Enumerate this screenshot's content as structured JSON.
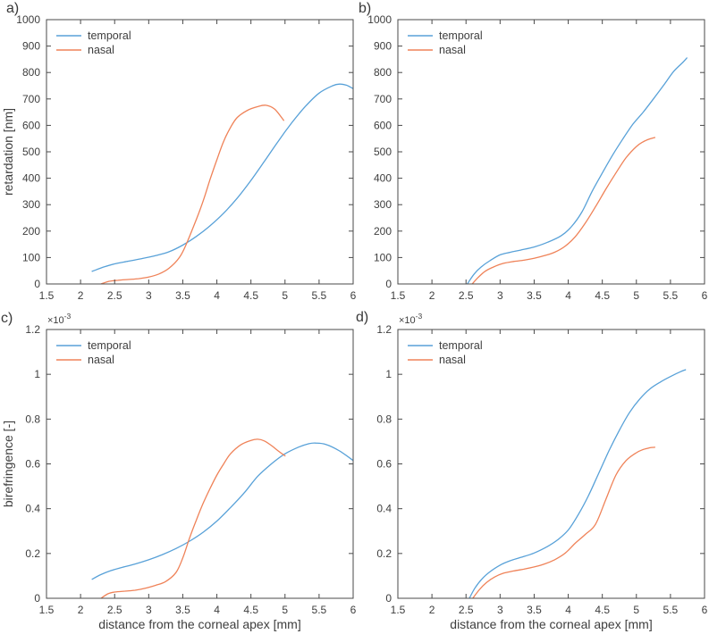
{
  "figure": {
    "background": "#ffffff",
    "axis_color": "#4a4a4a",
    "text_color": "#3e3e3e",
    "grid": false,
    "box": true,
    "series_palette": {
      "temporal": "#58a1d8",
      "nasal": "#ef8258"
    },
    "shared_xlabel": "distance from the corneal apex [mm]"
  },
  "chart_data": [
    {
      "id": "a",
      "panel_label": "a)",
      "type": "line",
      "xlabel": "",
      "ylabel": "retardation [nm]",
      "xlim": [
        1.5,
        6
      ],
      "ylim": [
        0,
        1000
      ],
      "xticks": [
        1.5,
        2,
        2.5,
        3,
        3.5,
        4,
        4.5,
        5,
        5.5,
        6
      ],
      "xtick_labels": [
        "1.5",
        "2",
        "2.5",
        "3",
        "3.5",
        "4",
        "4.5",
        "5",
        "5.5",
        "6"
      ],
      "yticks": [
        0,
        100,
        200,
        300,
        400,
        500,
        600,
        700,
        800,
        900,
        1000
      ],
      "ytick_labels": [
        "0",
        "100",
        "200",
        "300",
        "400",
        "500",
        "600",
        "700",
        "800",
        "900",
        "1000"
      ],
      "y_exponent": null,
      "grid": false,
      "legend_position": "top-left",
      "legend": [
        "temporal",
        "nasal"
      ],
      "series": [
        {
          "name": "temporal",
          "color": "#58a1d8",
          "points": [
            [
              2.17,
              48
            ],
            [
              2.35,
              65
            ],
            [
              2.5,
              76
            ],
            [
              2.7,
              86
            ],
            [
              2.9,
              96
            ],
            [
              3.1,
              107
            ],
            [
              3.3,
              122
            ],
            [
              3.5,
              147
            ],
            [
              3.7,
              180
            ],
            [
              3.9,
              220
            ],
            [
              4.1,
              268
            ],
            [
              4.3,
              325
            ],
            [
              4.5,
              392
            ],
            [
              4.7,
              465
            ],
            [
              4.9,
              540
            ],
            [
              5.1,
              610
            ],
            [
              5.3,
              672
            ],
            [
              5.5,
              722
            ],
            [
              5.7,
              750
            ],
            [
              5.8,
              756
            ],
            [
              5.9,
              752
            ],
            [
              6.0,
              739
            ]
          ]
        },
        {
          "name": "nasal",
          "color": "#ef8258",
          "points": [
            [
              2.3,
              0
            ],
            [
              2.42,
              10
            ],
            [
              2.55,
              14
            ],
            [
              2.7,
              17
            ],
            [
              2.85,
              20
            ],
            [
              3.0,
              26
            ],
            [
              3.15,
              38
            ],
            [
              3.3,
              60
            ],
            [
              3.45,
              100
            ],
            [
              3.55,
              150
            ],
            [
              3.7,
              245
            ],
            [
              3.8,
              315
            ],
            [
              3.9,
              395
            ],
            [
              4.0,
              470
            ],
            [
              4.1,
              540
            ],
            [
              4.2,
              592
            ],
            [
              4.3,
              630
            ],
            [
              4.45,
              657
            ],
            [
              4.6,
              671
            ],
            [
              4.72,
              676
            ],
            [
              4.85,
              661
            ],
            [
              4.98,
              619
            ]
          ]
        }
      ]
    },
    {
      "id": "b",
      "panel_label": "b)",
      "type": "line",
      "xlabel": "",
      "ylabel": "",
      "xlim": [
        1.5,
        6
      ],
      "ylim": [
        0,
        1000
      ],
      "xticks": [
        1.5,
        2,
        2.5,
        3,
        3.5,
        4,
        4.5,
        5,
        5.5,
        6
      ],
      "xtick_labels": [
        "1.5",
        "2",
        "2.5",
        "3",
        "3.5",
        "4",
        "4.5",
        "5",
        "5.5",
        "6"
      ],
      "yticks": [
        0,
        100,
        200,
        300,
        400,
        500,
        600,
        700,
        800,
        900,
        1000
      ],
      "ytick_labels": [
        "0",
        "100",
        "200",
        "300",
        "400",
        "500",
        "600",
        "700",
        "800",
        "900",
        "1000"
      ],
      "y_exponent": null,
      "grid": false,
      "legend_position": "top-left",
      "legend": [
        "temporal",
        "nasal"
      ],
      "series": [
        {
          "name": "temporal",
          "color": "#58a1d8",
          "points": [
            [
              2.52,
              0
            ],
            [
              2.62,
              38
            ],
            [
              2.72,
              64
            ],
            [
              2.85,
              88
            ],
            [
              3.0,
              110
            ],
            [
              3.15,
              120
            ],
            [
              3.3,
              128
            ],
            [
              3.5,
              140
            ],
            [
              3.7,
              158
            ],
            [
              3.9,
              183
            ],
            [
              4.05,
              218
            ],
            [
              4.2,
              272
            ],
            [
              4.35,
              350
            ],
            [
              4.5,
              420
            ],
            [
              4.65,
              487
            ],
            [
              4.8,
              548
            ],
            [
              4.95,
              605
            ],
            [
              5.1,
              650
            ],
            [
              5.25,
              700
            ],
            [
              5.4,
              752
            ],
            [
              5.55,
              805
            ],
            [
              5.68,
              838
            ],
            [
              5.74,
              855
            ]
          ]
        },
        {
          "name": "nasal",
          "color": "#ef8258",
          "points": [
            [
              2.59,
              0
            ],
            [
              2.68,
              25
            ],
            [
              2.78,
              48
            ],
            [
              2.9,
              64
            ],
            [
              3.05,
              78
            ],
            [
              3.2,
              85
            ],
            [
              3.35,
              90
            ],
            [
              3.5,
              97
            ],
            [
              3.65,
              107
            ],
            [
              3.8,
              120
            ],
            [
              3.95,
              142
            ],
            [
              4.1,
              178
            ],
            [
              4.25,
              230
            ],
            [
              4.4,
              292
            ],
            [
              4.55,
              358
            ],
            [
              4.7,
              420
            ],
            [
              4.85,
              478
            ],
            [
              5.0,
              520
            ],
            [
              5.1,
              538
            ],
            [
              5.2,
              549
            ],
            [
              5.27,
              554
            ]
          ]
        }
      ]
    },
    {
      "id": "c",
      "panel_label": "c)",
      "type": "line",
      "xlabel": "distance from the corneal apex [mm]",
      "ylabel": "birefringence [-]",
      "xlim": [
        1.5,
        6
      ],
      "ylim": [
        0,
        1.2
      ],
      "y_multiplier": 0.001,
      "xticks": [
        1.5,
        2,
        2.5,
        3,
        3.5,
        4,
        4.5,
        5,
        5.5,
        6
      ],
      "xtick_labels": [
        "1.5",
        "2",
        "2.5",
        "3",
        "3.5",
        "4",
        "4.5",
        "5",
        "5.5",
        "6"
      ],
      "yticks": [
        0,
        0.2,
        0.4,
        0.6,
        0.8,
        1,
        1.2
      ],
      "ytick_labels": [
        "0",
        "0.2",
        "0.4",
        "0.6",
        "0.8",
        "1",
        "1.2"
      ],
      "y_exponent": {
        "base": "×10",
        "power": "-3"
      },
      "grid": false,
      "legend_position": "top-left",
      "legend": [
        "temporal",
        "nasal"
      ],
      "series": [
        {
          "name": "temporal",
          "color": "#58a1d8",
          "points": [
            [
              2.17,
              0.085
            ],
            [
              2.3,
              0.106
            ],
            [
              2.45,
              0.124
            ],
            [
              2.6,
              0.137
            ],
            [
              2.8,
              0.153
            ],
            [
              3.0,
              0.172
            ],
            [
              3.2,
              0.195
            ],
            [
              3.4,
              0.222
            ],
            [
              3.6,
              0.255
            ],
            [
              3.8,
              0.295
            ],
            [
              4.0,
              0.345
            ],
            [
              4.2,
              0.405
            ],
            [
              4.4,
              0.47
            ],
            [
              4.6,
              0.545
            ],
            [
              4.8,
              0.6
            ],
            [
              5.0,
              0.645
            ],
            [
              5.2,
              0.675
            ],
            [
              5.35,
              0.69
            ],
            [
              5.45,
              0.693
            ],
            [
              5.6,
              0.687
            ],
            [
              5.8,
              0.658
            ],
            [
              6.0,
              0.615
            ]
          ]
        },
        {
          "name": "nasal",
          "color": "#ef8258",
          "points": [
            [
              2.3,
              0
            ],
            [
              2.4,
              0.02
            ],
            [
              2.5,
              0.028
            ],
            [
              2.65,
              0.032
            ],
            [
              2.8,
              0.036
            ],
            [
              2.95,
              0.045
            ],
            [
              3.1,
              0.058
            ],
            [
              3.25,
              0.075
            ],
            [
              3.4,
              0.115
            ],
            [
              3.5,
              0.18
            ],
            [
              3.6,
              0.27
            ],
            [
              3.7,
              0.35
            ],
            [
              3.8,
              0.425
            ],
            [
              3.9,
              0.49
            ],
            [
              4.0,
              0.55
            ],
            [
              4.1,
              0.6
            ],
            [
              4.2,
              0.645
            ],
            [
              4.35,
              0.685
            ],
            [
              4.5,
              0.705
            ],
            [
              4.6,
              0.71
            ],
            [
              4.7,
              0.702
            ],
            [
              4.8,
              0.682
            ],
            [
              4.9,
              0.658
            ],
            [
              5.0,
              0.636
            ]
          ]
        }
      ]
    },
    {
      "id": "d",
      "panel_label": "d)",
      "type": "line",
      "xlabel": "distance from the corneal apex [mm]",
      "ylabel": "",
      "xlim": [
        1.5,
        6
      ],
      "ylim": [
        0,
        1.2
      ],
      "y_multiplier": 0.001,
      "xticks": [
        1.5,
        2,
        2.5,
        3,
        3.5,
        4,
        4.5,
        5,
        5.5,
        6
      ],
      "xtick_labels": [
        "1.5",
        "2",
        "2.5",
        "3",
        "3.5",
        "4",
        "4.5",
        "5",
        "5.5",
        "6"
      ],
      "yticks": [
        0,
        0.2,
        0.4,
        0.6,
        0.8,
        1,
        1.2
      ],
      "ytick_labels": [
        "0",
        "0.2",
        "0.4",
        "0.6",
        "0.8",
        "1",
        "1.2"
      ],
      "y_exponent": {
        "base": "×10",
        "power": "-3"
      },
      "grid": false,
      "legend_position": "top-left",
      "legend": [
        "temporal",
        "nasal"
      ],
      "series": [
        {
          "name": "temporal",
          "color": "#58a1d8",
          "points": [
            [
              2.55,
              0
            ],
            [
              2.63,
              0.045
            ],
            [
              2.73,
              0.085
            ],
            [
              2.85,
              0.118
            ],
            [
              3.0,
              0.148
            ],
            [
              3.15,
              0.168
            ],
            [
              3.3,
              0.182
            ],
            [
              3.5,
              0.202
            ],
            [
              3.7,
              0.232
            ],
            [
              3.85,
              0.262
            ],
            [
              4.0,
              0.305
            ],
            [
              4.15,
              0.375
            ],
            [
              4.3,
              0.46
            ],
            [
              4.45,
              0.56
            ],
            [
              4.6,
              0.66
            ],
            [
              4.75,
              0.75
            ],
            [
              4.9,
              0.83
            ],
            [
              5.05,
              0.89
            ],
            [
              5.2,
              0.935
            ],
            [
              5.35,
              0.965
            ],
            [
              5.5,
              0.99
            ],
            [
              5.65,
              1.012
            ],
            [
              5.72,
              1.02
            ]
          ]
        },
        {
          "name": "nasal",
          "color": "#ef8258",
          "points": [
            [
              2.6,
              0
            ],
            [
              2.7,
              0.04
            ],
            [
              2.8,
              0.07
            ],
            [
              2.92,
              0.095
            ],
            [
              3.05,
              0.112
            ],
            [
              3.2,
              0.122
            ],
            [
              3.35,
              0.13
            ],
            [
              3.5,
              0.14
            ],
            [
              3.65,
              0.153
            ],
            [
              3.8,
              0.172
            ],
            [
              3.95,
              0.2
            ],
            [
              4.1,
              0.245
            ],
            [
              4.25,
              0.285
            ],
            [
              4.4,
              0.33
            ],
            [
              4.55,
              0.44
            ],
            [
              4.7,
              0.55
            ],
            [
              4.85,
              0.615
            ],
            [
              5.0,
              0.65
            ],
            [
              5.1,
              0.664
            ],
            [
              5.2,
              0.672
            ],
            [
              5.27,
              0.674
            ]
          ]
        }
      ]
    }
  ]
}
